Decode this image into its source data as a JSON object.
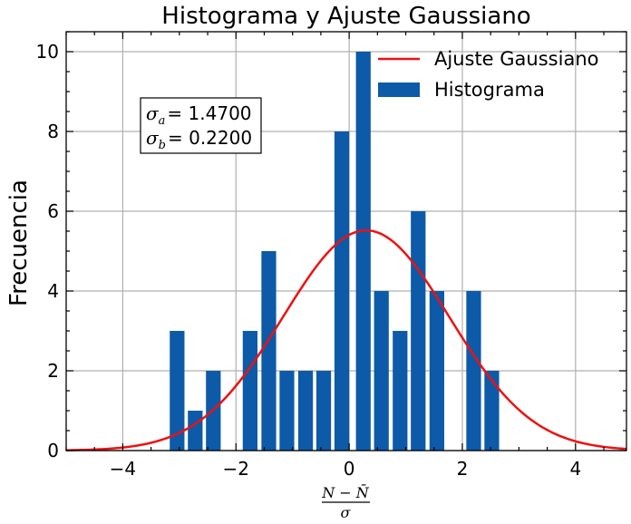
{
  "chart_data": {
    "type": "bar",
    "title": "Histograma y Ajuste Gaussiano",
    "ylabel": "Frecuencia",
    "xlabel": {
      "numerator": "N − N̄",
      "denominator": "σ"
    },
    "xlim": [
      -5,
      4.9
    ],
    "ylim": [
      0,
      10.5
    ],
    "xticks": [
      -4,
      -2,
      0,
      2,
      4
    ],
    "xtick_labels": [
      "−4",
      "−2",
      "0",
      "2",
      "4"
    ],
    "yticks": [
      0,
      2,
      4,
      6,
      8,
      10
    ],
    "ytick_labels": [
      "0",
      "2",
      "4",
      "6",
      "8",
      "10"
    ],
    "grid": true,
    "legend_position": "top-right",
    "bar_width": 0.26,
    "bar_color": "#0d5aa8",
    "histogram": {
      "name": "Histograma",
      "x": [
        -3.04,
        -2.72,
        -2.4,
        -1.75,
        -1.42,
        -1.1,
        -0.77,
        -0.45,
        -0.13,
        0.25,
        0.57,
        0.9,
        1.22,
        1.55,
        2.2,
        2.52
      ],
      "values": [
        3,
        1,
        2,
        3,
        5,
        2,
        2,
        2,
        8,
        10,
        4,
        3,
        6,
        4,
        4,
        2
      ]
    },
    "gaussian_fit": {
      "name": "Ajuste Gaussiano",
      "color": "#ee1111",
      "amplitude": 5.52,
      "mean": 0.3,
      "sigma": 1.47
    },
    "annotation": {
      "line1": {
        "symbol": "σ",
        "sub": "a",
        "value": "= 1.4700"
      },
      "line2": {
        "symbol": "σ",
        "sub": "b",
        "value": "= 0.2200"
      }
    }
  }
}
